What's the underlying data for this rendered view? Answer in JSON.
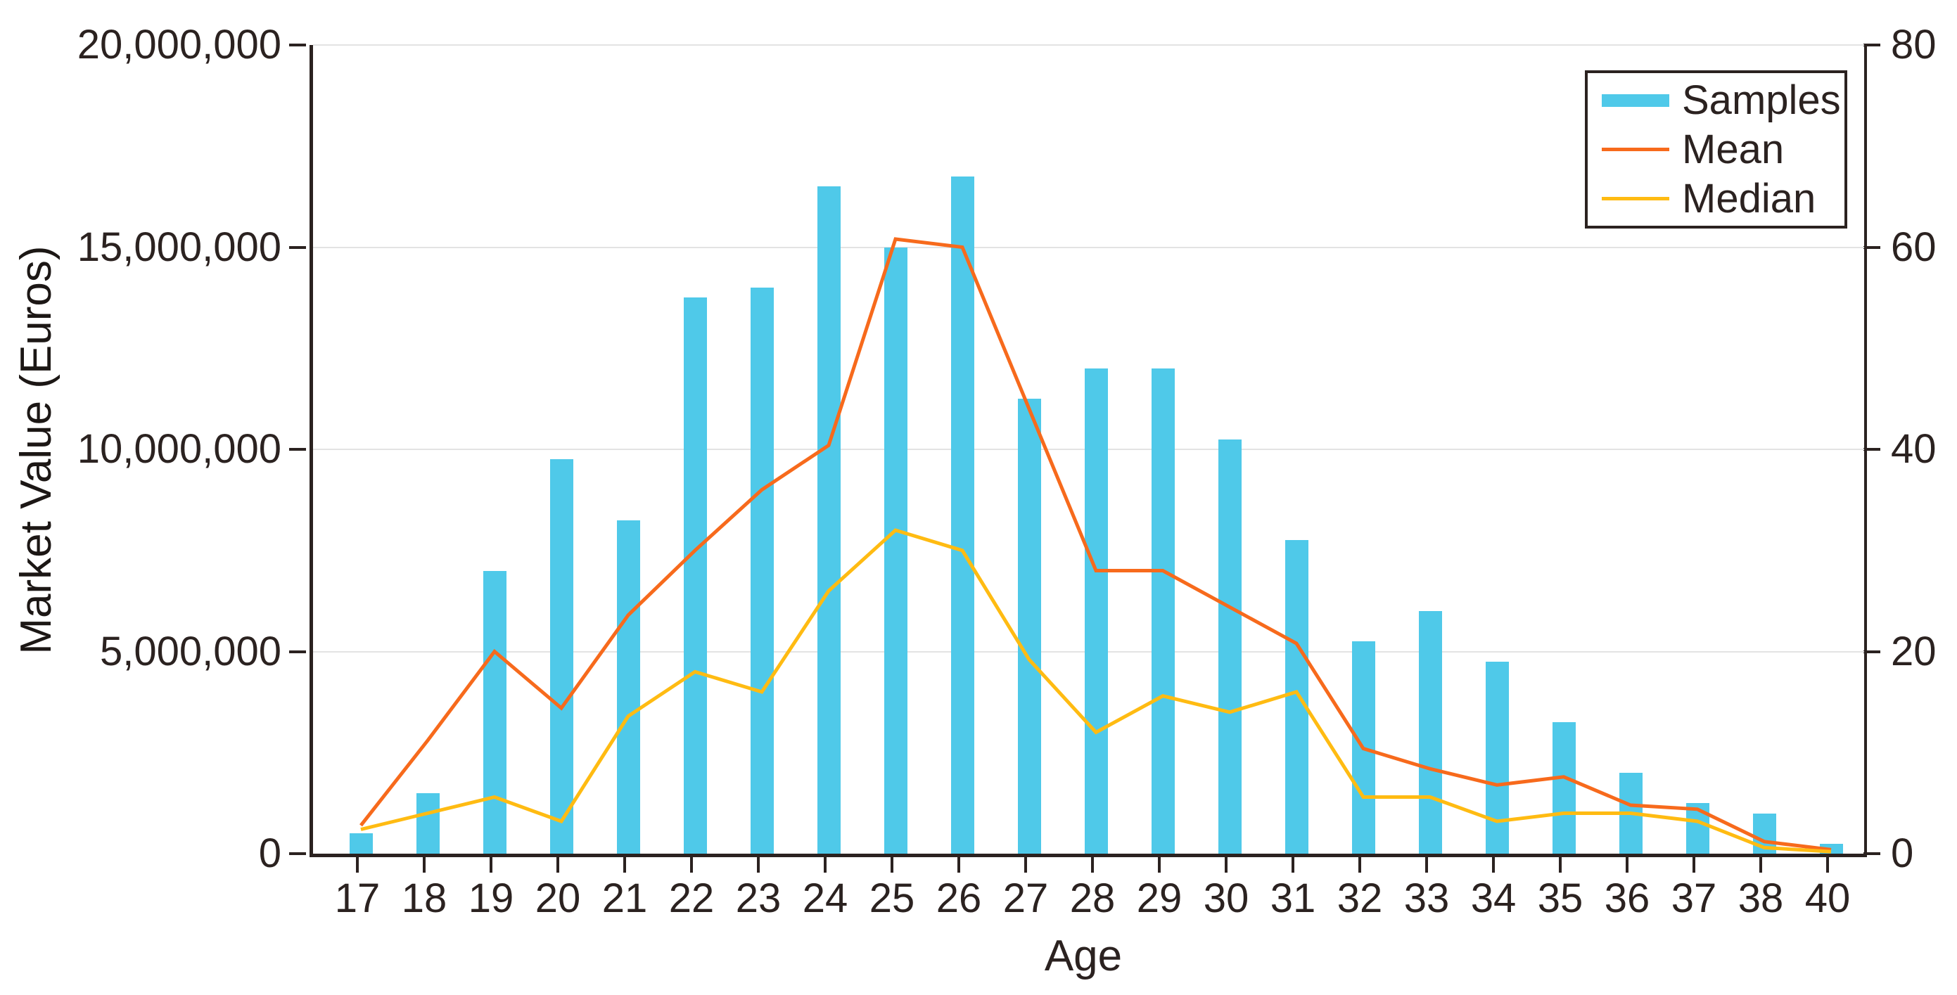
{
  "chart_data": {
    "type": "bar+line combo",
    "title": "",
    "xlabel": "Age",
    "ylabel_left": "Market Value (Euros)",
    "ylabel_right": "",
    "grid": "horizontal",
    "legend_position": "top-right",
    "categories": [
      "17",
      "18",
      "19",
      "20",
      "21",
      "22",
      "23",
      "24",
      "25",
      "26",
      "27",
      "28",
      "29",
      "30",
      "31",
      "32",
      "33",
      "34",
      "35",
      "36",
      "37",
      "38",
      "40"
    ],
    "left_axis": {
      "min": 0,
      "max": 20000000,
      "ticks": [
        {
          "value": 0,
          "label": "0"
        },
        {
          "value": 5000000,
          "label": "5,000,000"
        },
        {
          "value": 10000000,
          "label": "10,000,000"
        },
        {
          "value": 15000000,
          "label": "15,000,000"
        },
        {
          "value": 20000000,
          "label": "20,000,000"
        }
      ]
    },
    "right_axis": {
      "min": 0,
      "max": 80,
      "ticks": [
        {
          "value": 0,
          "label": "0"
        },
        {
          "value": 20,
          "label": "20"
        },
        {
          "value": 40,
          "label": "40"
        },
        {
          "value": 60,
          "label": "60"
        },
        {
          "value": 80,
          "label": "80"
        }
      ]
    },
    "series": [
      {
        "name": "Samples",
        "type": "bar",
        "axis": "right",
        "color": "#4fc9e9",
        "values": [
          2,
          6,
          28,
          39,
          33,
          55,
          56,
          66,
          60,
          67,
          45,
          48,
          48,
          41,
          31,
          21,
          24,
          19,
          13,
          8,
          5,
          4,
          1
        ]
      },
      {
        "name": "Mean",
        "type": "line",
        "axis": "left",
        "color": "#f76a1c",
        "values": [
          700000,
          2800000,
          5000000,
          3600000,
          5900000,
          7500000,
          9000000,
          10100000,
          15200000,
          15000000,
          11000000,
          7000000,
          7000000,
          6100000,
          5200000,
          2600000,
          2100000,
          1700000,
          1900000,
          1200000,
          1100000,
          300000,
          100000
        ]
      },
      {
        "name": "Median",
        "type": "line",
        "axis": "left",
        "color": "#ffbb12",
        "values": [
          600000,
          1000000,
          1400000,
          800000,
          3400000,
          4500000,
          4000000,
          6500000,
          8000000,
          7500000,
          4800000,
          3000000,
          3900000,
          3500000,
          4000000,
          1400000,
          1400000,
          800000,
          1000000,
          1000000,
          800000,
          150000,
          50000
        ]
      }
    ],
    "legend": [
      {
        "label": "Samples",
        "type": "bar",
        "color": "#4fc9e9"
      },
      {
        "label": "Mean",
        "type": "line",
        "color": "#f76a1c"
      },
      {
        "label": "Median",
        "type": "line",
        "color": "#ffbb12"
      }
    ]
  },
  "colors": {
    "bars": "#4fc9e9",
    "mean_line": "#f76a1c",
    "median_line": "#ffbb12",
    "axis": "#2b2220",
    "gridline": "#e3e3e3",
    "background": "#ffffff"
  }
}
